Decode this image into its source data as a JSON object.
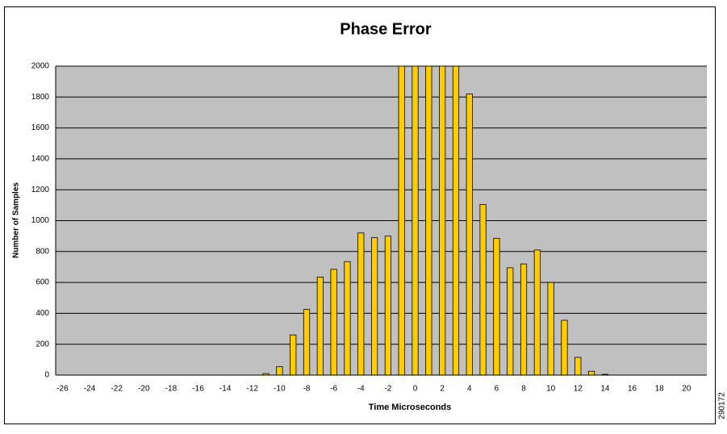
{
  "chart_data": {
    "type": "bar",
    "title": "Phase Error",
    "x_label": "Time Microseconds",
    "y_label": "Number of Samples",
    "side_note": "290172",
    "categories": [
      -26,
      null,
      -24,
      null,
      -22,
      null,
      -20,
      null,
      -18,
      null,
      -16,
      null,
      -14,
      null,
      -12,
      null,
      -10,
      null,
      -8,
      null,
      -6,
      null,
      -4,
      null,
      -2,
      null,
      0,
      null,
      2,
      null,
      4,
      null,
      6,
      null,
      8,
      null,
      10,
      null,
      12,
      null,
      14,
      null,
      16,
      null,
      18,
      null,
      20,
      null
    ],
    "values": [
      0,
      0,
      0,
      0,
      0,
      0,
      0,
      0,
      0,
      0,
      0,
      0,
      0,
      0,
      0,
      10,
      55,
      260,
      425,
      635,
      685,
      735,
      920,
      890,
      900,
      2000,
      2000,
      2000,
      2000,
      2000,
      1820,
      1105,
      885,
      695,
      720,
      810,
      600,
      355,
      115,
      25,
      5,
      0,
      0,
      0,
      0,
      0,
      0,
      0
    ],
    "color": "#ffcc00",
    "background": "#c0c0c0",
    "ylim": [
      0,
      2000
    ],
    "yticks": [
      0,
      200,
      400,
      600,
      800,
      1000,
      1200,
      1400,
      1600,
      1800,
      2000
    ],
    "grid": true
  }
}
